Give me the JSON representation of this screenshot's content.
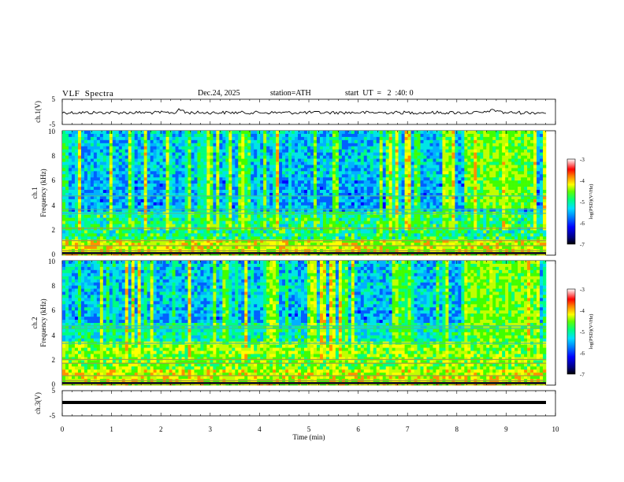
{
  "header": {
    "title": "VLF  Spectra",
    "date": "Dec.24, 2025",
    "station": "station=ATH",
    "start": "start  UT  =   2  :40: 0"
  },
  "chart_data": [
    {
      "id": "ch1-waveform",
      "type": "line",
      "ylabel": "ch.1(V)",
      "xlim": [
        0,
        10
      ],
      "ylim": [
        -5,
        5
      ],
      "yticks": [
        "5",
        "-5"
      ],
      "color": "#000000"
    },
    {
      "id": "ch1-spectrogram",
      "type": "heatmap",
      "ylabel_line1": "ch.1",
      "ylabel_line2": "Frequency  (kHz)",
      "xlim": [
        0,
        9.8
      ],
      "ylim": [
        0,
        10
      ],
      "yticks": [
        "0",
        "2",
        "4",
        "6",
        "8",
        "10"
      ],
      "colorbar": {
        "label": "log(PSD)(V²/Hz)",
        "range": [
          -7,
          -3
        ],
        "ticks": [
          "-3",
          "-4",
          "-5",
          "-6",
          "-7"
        ]
      }
    },
    {
      "id": "ch2-spectrogram",
      "type": "heatmap",
      "ylabel_line1": "ch.2",
      "ylabel_line2": "Frequency  (kHz)",
      "xlim": [
        0,
        9.8
      ],
      "ylim": [
        0,
        10
      ],
      "yticks": [
        "0",
        "2",
        "4",
        "6",
        "8",
        "10"
      ],
      "colorbar": {
        "label": "log(PSD)(V²/Hz)",
        "range": [
          -7,
          -3
        ],
        "ticks": [
          "-3",
          "-4",
          "-5",
          "-6",
          "-7"
        ]
      }
    },
    {
      "id": "ch3-waveform",
      "type": "line",
      "ylabel": "ch.3(V)",
      "xlim": [
        0,
        10
      ],
      "ylim": [
        -5,
        5
      ],
      "yticks": [
        "5",
        "-5"
      ],
      "color": "#000000"
    }
  ],
  "x_axis": {
    "label": "Time  (min)",
    "range": [
      0,
      10
    ],
    "ticks": [
      "0",
      "1",
      "2",
      "3",
      "4",
      "5",
      "6",
      "7",
      "8",
      "9",
      "10"
    ]
  },
  "colors": {
    "colormap": [
      "#000000",
      "#000080",
      "#0000ff",
      "#0060ff",
      "#00b0ff",
      "#00e5e5",
      "#00ff80",
      "#40ff00",
      "#c0ff00",
      "#ffff00",
      "#ff9000",
      "#ff0000",
      "#ffffff"
    ]
  }
}
